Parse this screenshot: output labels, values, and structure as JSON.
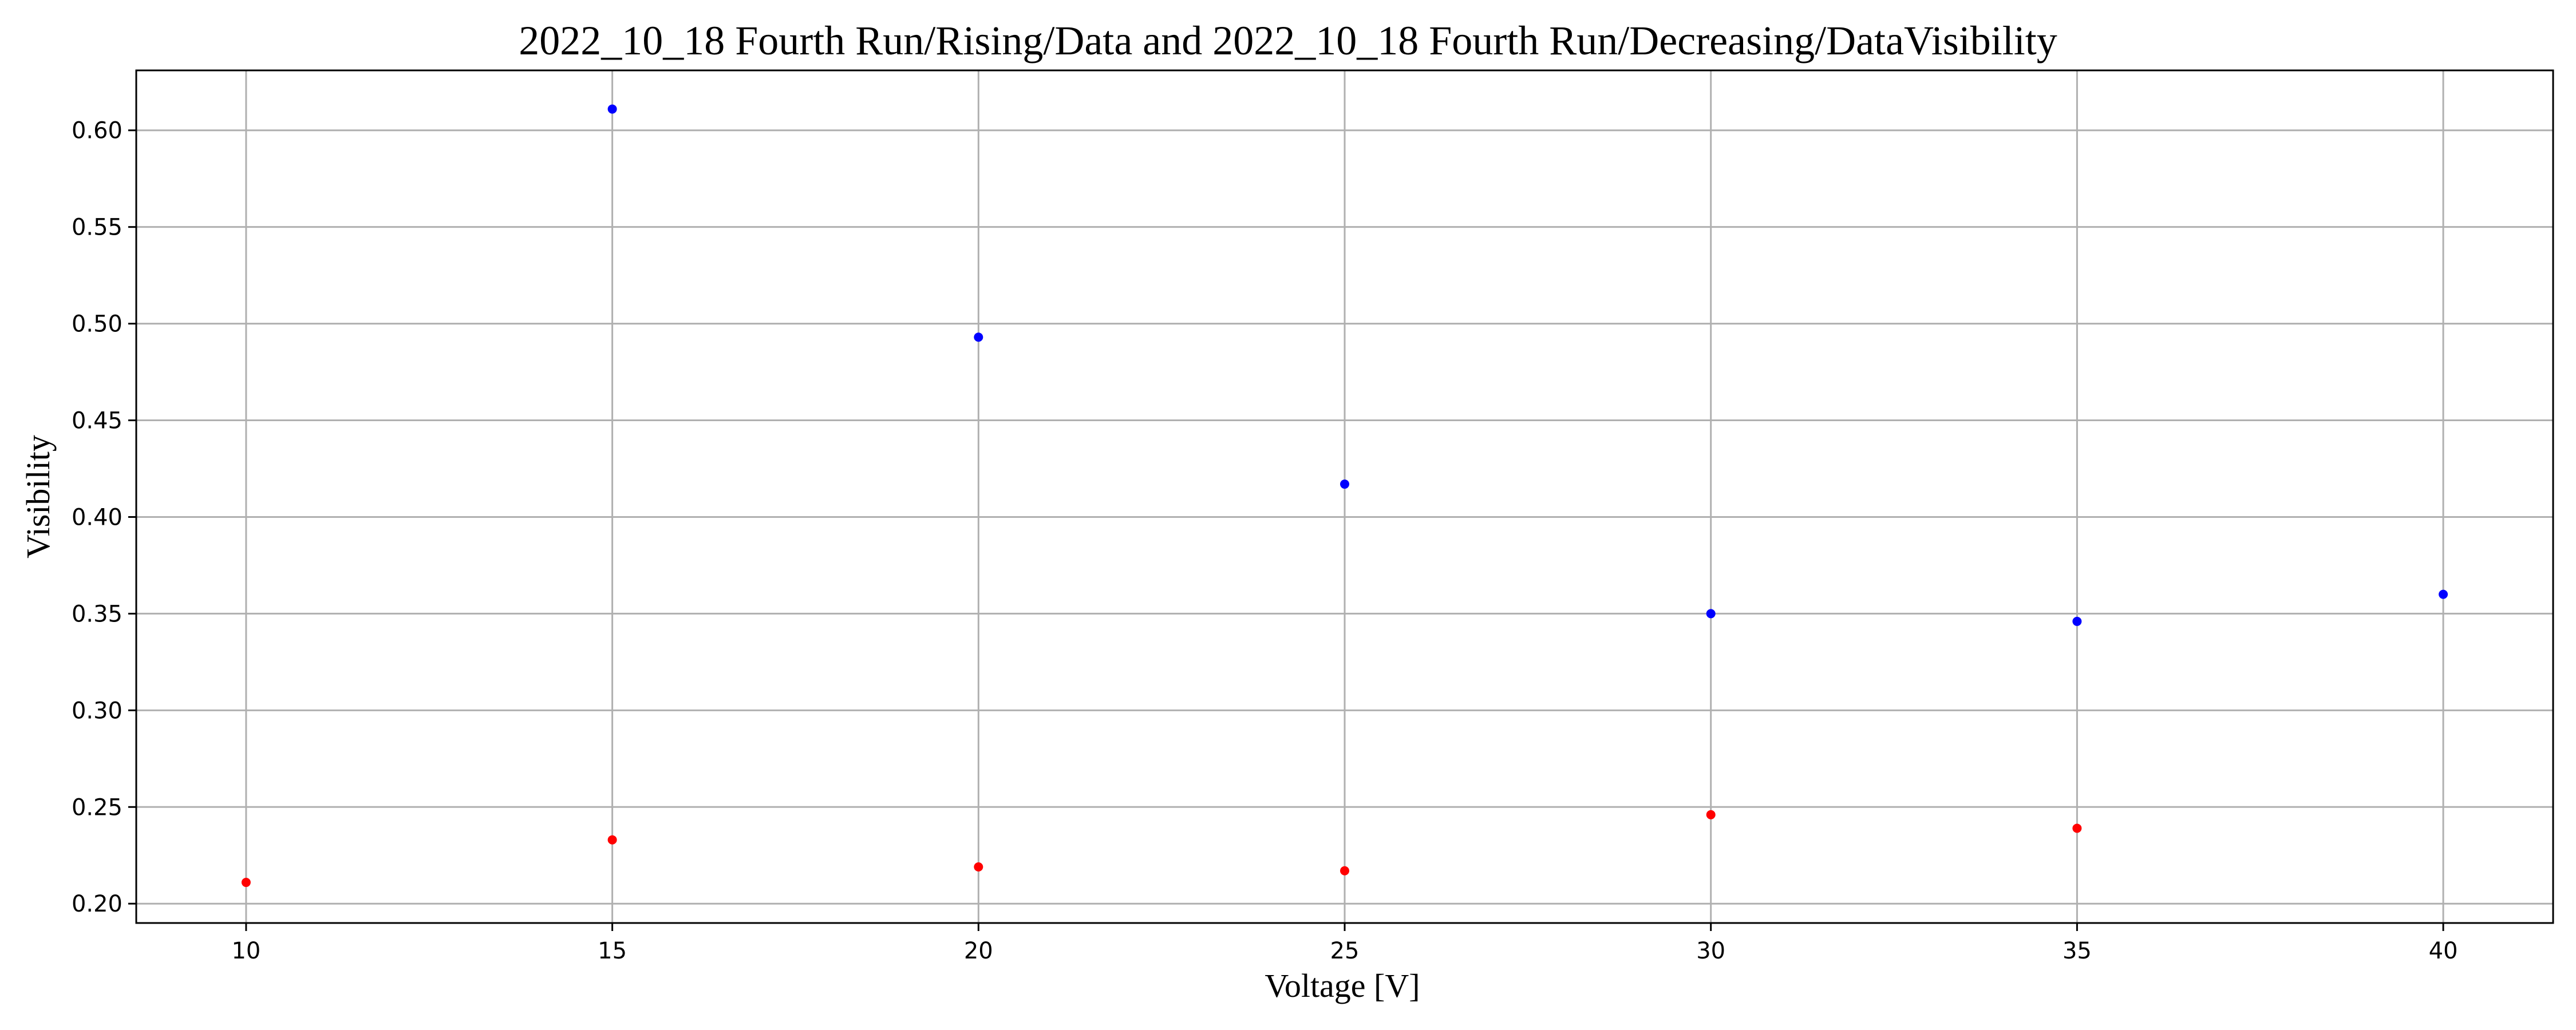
{
  "chart_data": {
    "type": "scatter",
    "title": "2022_10_18 Fourth Run/Rising/Data and 2022_10_18 Fourth Run/Decreasing/DataVisibility",
    "xlabel": "Voltage [V]",
    "ylabel": "Visibility",
    "xlim": [
      8.5,
      41.5
    ],
    "ylim": [
      0.19,
      0.631
    ],
    "xticks": [
      10,
      15,
      20,
      25,
      30,
      35,
      40
    ],
    "xtick_labels": [
      "10",
      "15",
      "20",
      "25",
      "30",
      "35",
      "40"
    ],
    "yticks": [
      0.2,
      0.25,
      0.3,
      0.35,
      0.4,
      0.45,
      0.5,
      0.55,
      0.6
    ],
    "ytick_labels": [
      "0.20",
      "0.25",
      "0.30",
      "0.35",
      "0.40",
      "0.45",
      "0.50",
      "0.55",
      "0.60"
    ],
    "grid": true,
    "series": [
      {
        "color": "#0000ff",
        "x": [
          15,
          20,
          25,
          30,
          35,
          40
        ],
        "y": [
          0.611,
          0.493,
          0.417,
          0.35,
          0.346,
          0.36
        ]
      },
      {
        "color": "#ff0000",
        "x": [
          10,
          15,
          20,
          25,
          30,
          35
        ],
        "y": [
          0.211,
          0.233,
          0.219,
          0.217,
          0.246,
          0.239
        ]
      }
    ]
  }
}
